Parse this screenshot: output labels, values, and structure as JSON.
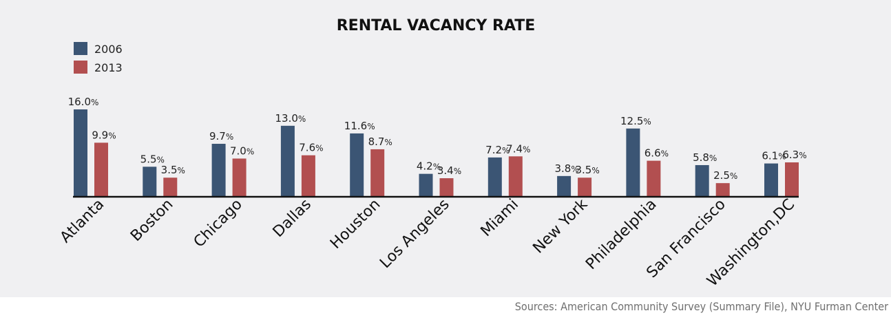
{
  "chart_data": {
    "type": "bar",
    "title": "RENTAL VACANCY RATE",
    "categories": [
      "Atlanta",
      "Boston",
      "Chicago",
      "Dallas",
      "Houston",
      "Los Angeles",
      "Miami",
      "New York",
      "Philadelphia",
      "San Francisco",
      "Washington,DC"
    ],
    "series": [
      {
        "name": "2006",
        "color": "#3b5574",
        "values": [
          16.0,
          5.5,
          9.7,
          13.0,
          11.6,
          4.2,
          7.2,
          3.8,
          12.5,
          5.8,
          6.1
        ]
      },
      {
        "name": "2013",
        "color": "#b24f50",
        "values": [
          9.9,
          3.5,
          7.0,
          7.6,
          8.7,
          3.4,
          7.4,
          3.5,
          6.6,
          2.5,
          6.3
        ]
      }
    ],
    "value_suffix": "%",
    "ylim": [
      0,
      16
    ],
    "legend_position": "top-left",
    "grid": false
  },
  "source": "Sources: American Community Survey (Summary File), NYU Furman Center"
}
